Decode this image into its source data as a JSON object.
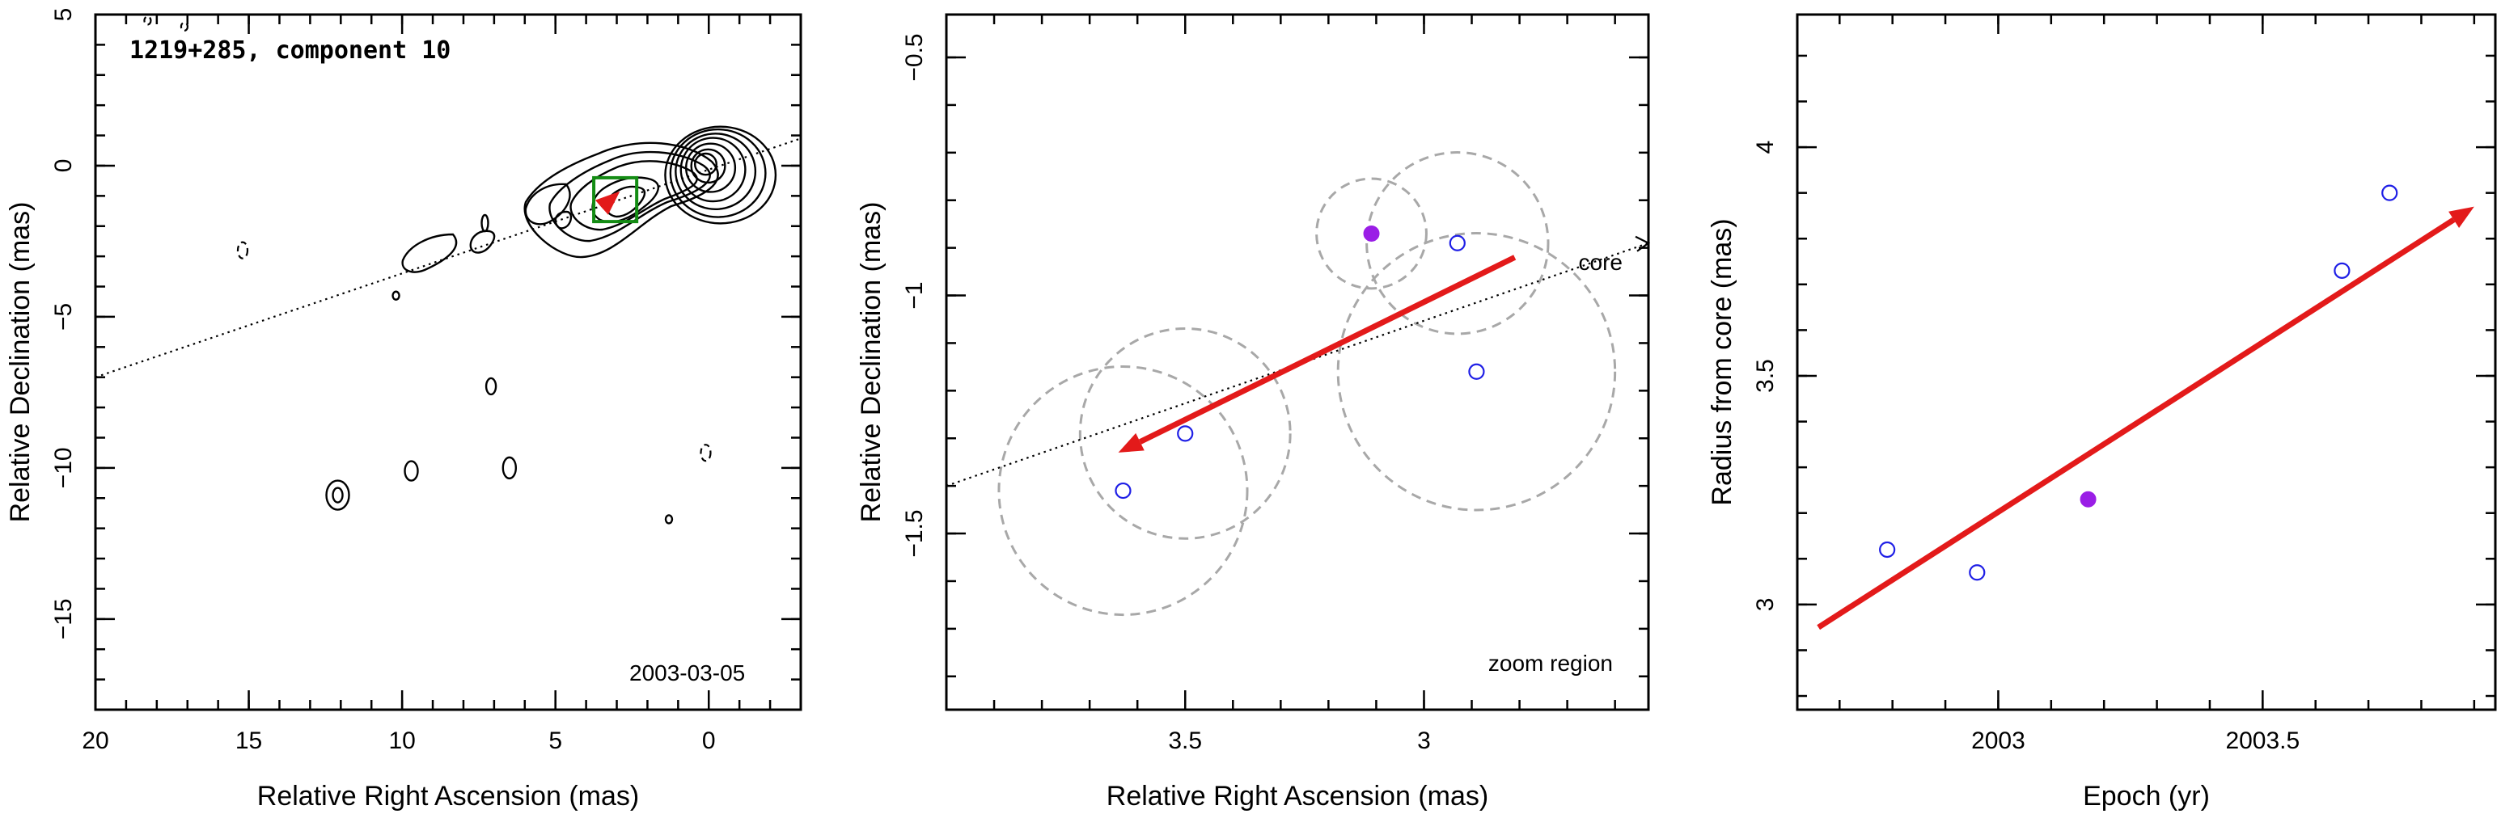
{
  "chart_data": [
    {
      "type": "scatter",
      "panel": "contour-map",
      "title": "1219+285, component 10",
      "annotation": "2003-03-05",
      "xlabel": "Relative Right Ascension (mas)",
      "ylabel": "Relative Declination (mas)",
      "xlim": [
        20,
        -3
      ],
      "ylim": [
        -18,
        5
      ],
      "xticks": [
        20,
        15,
        10,
        5,
        0
      ],
      "xticklabels": [
        "20",
        "15",
        "10",
        "5",
        "0"
      ],
      "yticks": [
        5,
        0,
        -5,
        -10,
        -15
      ],
      "yticklabels": [
        "5",
        "0",
        "−5",
        "−10",
        "−15"
      ],
      "dotted_line": {
        "x": [
          20,
          -3
        ],
        "y": [
          -7.0,
          0.9
        ]
      },
      "zoom_box": {
        "x": [
          3.75,
          2.35
        ],
        "y": [
          -0.4,
          -1.85
        ]
      },
      "arrow": {
        "from": [
          3.4,
          -1.3
        ],
        "to": [
          2.9,
          -0.85
        ]
      }
    },
    {
      "type": "scatter",
      "panel": "zoom-region",
      "annotation": "zoom region",
      "reference_label": "core",
      "xlabel": "Relative Right Ascension (mas)",
      "ylabel": "Relative Declination (mas)",
      "xlim": [
        4.0,
        2.53
      ],
      "ylim": [
        -1.87,
        -0.41
      ],
      "xticks": [
        3.5,
        3.0
      ],
      "xticklabels": [
        "3.5",
        "3"
      ],
      "yticks": [
        -0.5,
        -1.0,
        -1.5
      ],
      "yticklabels": [
        "−0.5",
        "−1",
        "−1.5"
      ],
      "points": [
        {
          "x": 3.63,
          "y": -1.41,
          "filled": false,
          "radius": 0.26
        },
        {
          "x": 3.5,
          "y": -1.29,
          "filled": false,
          "radius": 0.22
        },
        {
          "x": 3.11,
          "y": -0.87,
          "filled": true,
          "radius": 0.115
        },
        {
          "x": 2.93,
          "y": -0.89,
          "filled": false,
          "radius": 0.19
        },
        {
          "x": 2.89,
          "y": -1.16,
          "filled": false,
          "radius": 0.29
        }
      ],
      "dotted_line": {
        "x": [
          4.0,
          2.53
        ],
        "y": [
          -1.4,
          -0.89
        ]
      },
      "arrow": {
        "from": [
          2.81,
          -0.92
        ],
        "to": [
          3.64,
          -1.33
        ]
      }
    },
    {
      "type": "scatter",
      "panel": "radius-vs-epoch",
      "xlabel": "Epoch (yr)",
      "ylabel": "Radius from core (mas)",
      "xlim": [
        2002.62,
        2003.94
      ],
      "ylim": [
        2.77,
        4.29
      ],
      "xticks": [
        2003.0,
        2003.5
      ],
      "xticklabels": [
        "2003",
        "2003.5"
      ],
      "yticks": [
        3.0,
        3.5,
        4.0
      ],
      "yticklabels": [
        "3",
        "3.5",
        "4"
      ],
      "points": [
        {
          "x": 2002.79,
          "y": 3.12,
          "filled": false
        },
        {
          "x": 2002.96,
          "y": 3.07,
          "filled": false
        },
        {
          "x": 2003.17,
          "y": 3.23,
          "filled": true
        },
        {
          "x": 2003.65,
          "y": 3.73,
          "filled": false
        },
        {
          "x": 2003.74,
          "y": 3.9,
          "filled": false
        }
      ],
      "arrow": {
        "from": [
          2002.66,
          2.95
        ],
        "to": [
          2003.9,
          3.87
        ]
      }
    }
  ]
}
